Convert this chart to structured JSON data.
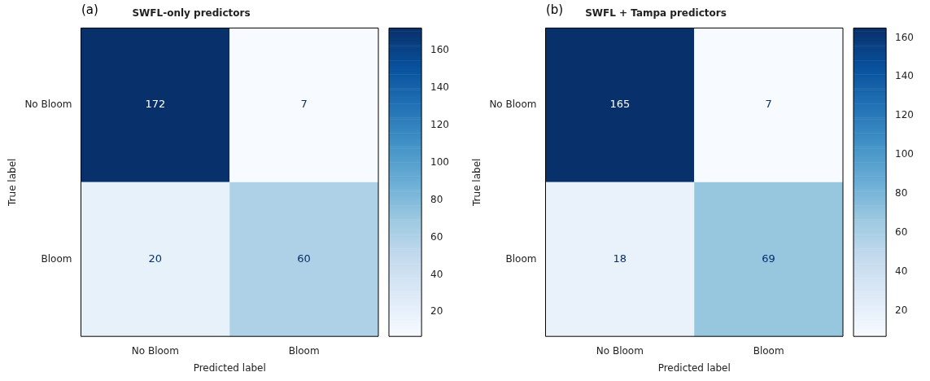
{
  "chart_data": [
    {
      "type": "heatmap",
      "title": "SWFL-only predictors",
      "annotations": [
        "(a)"
      ],
      "xlabel": "Predicted label",
      "ylabel": "True label",
      "categories": [
        "No Bloom",
        "Bloom"
      ],
      "y_categories": [
        "No Bloom",
        "Bloom"
      ],
      "cells": [
        [
          172,
          7
        ],
        [
          20,
          60
        ]
      ],
      "data_labels": true,
      "clim": [
        7,
        172
      ],
      "cticks": [
        20,
        40,
        60,
        80,
        100,
        120,
        140,
        160
      ]
    },
    {
      "type": "heatmap",
      "title": "SWFL + Tampa predictors",
      "annotations": [
        "(b)"
      ],
      "xlabel": "Predicted label",
      "ylabel": "True label",
      "categories": [
        "No Bloom",
        "Bloom"
      ],
      "y_categories": [
        "No Bloom",
        "Bloom"
      ],
      "cells": [
        [
          165,
          7
        ],
        [
          18,
          69
        ]
      ],
      "data_labels": true,
      "clim": [
        7,
        165
      ],
      "cticks": [
        20,
        40,
        60,
        80,
        100,
        120,
        140,
        160
      ]
    }
  ]
}
